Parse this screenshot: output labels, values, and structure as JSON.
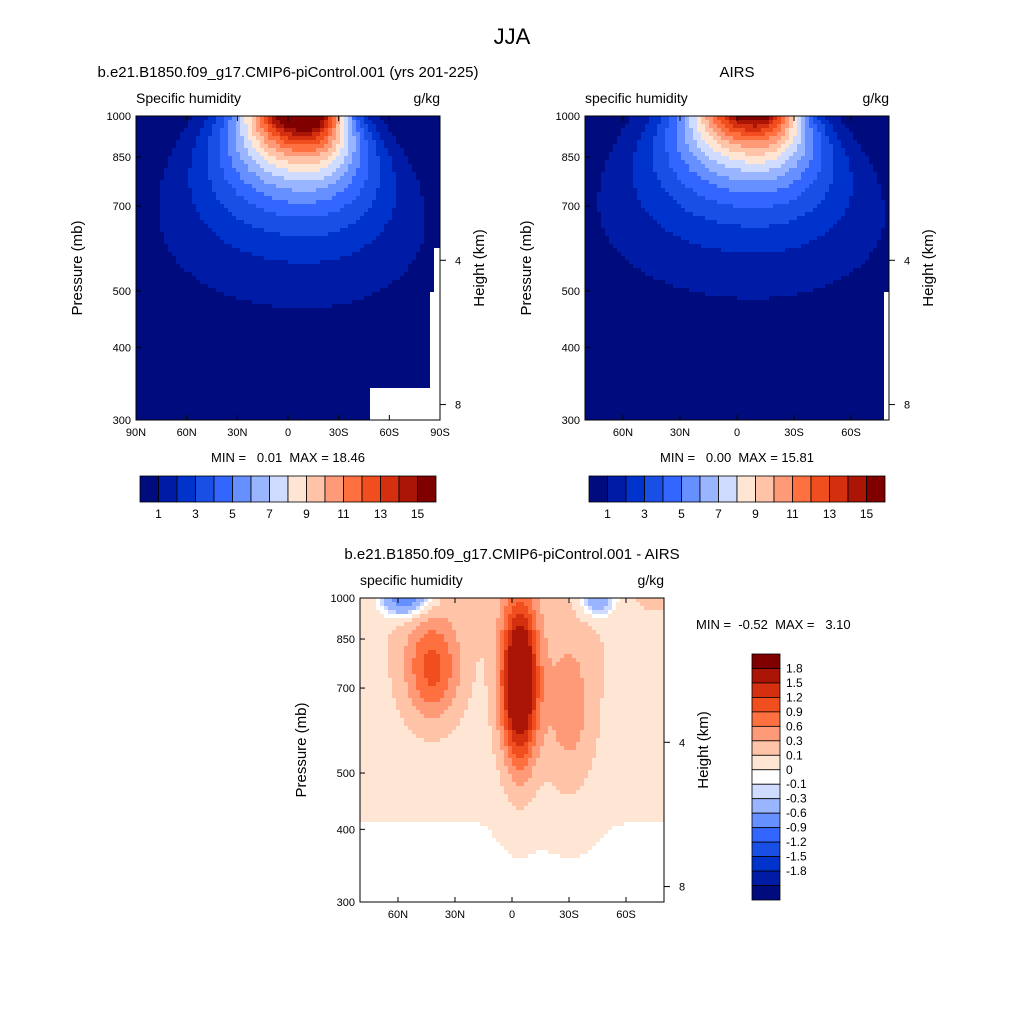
{
  "figure": {
    "title": "JJA"
  },
  "chart_data": [
    {
      "type": "heatmap",
      "title": "b.e21.B1850.f09_g17.CMIP6-piControl.001 (yrs 201-225)",
      "left_label": "Specific humidity",
      "right_label": "g/kg",
      "ylabel": "Pressure (mb)",
      "y2label": "Height (km)",
      "x_ticks": [
        "90N",
        "60N",
        "30N",
        "0",
        "30S",
        "60S",
        "90S"
      ],
      "y_ticks": [
        "300",
        "400",
        "500",
        "700",
        "850",
        "1000"
      ],
      "y2_ticks": [
        "8",
        "4"
      ],
      "stats": "MIN =   0.01  MAX = 18.46",
      "ylim": [
        1000,
        300
      ],
      "xlim": [
        90,
        -90
      ],
      "colorbar": {
        "levels": [
          1,
          2,
          3,
          4,
          5,
          6,
          7,
          8,
          9,
          10,
          11,
          12,
          13,
          14,
          15
        ],
        "labels": [
          "1",
          "3",
          "5",
          "7",
          "9",
          "11",
          "13",
          "15"
        ]
      },
      "max_value": 18.46,
      "core_latitude": -10
    },
    {
      "type": "heatmap",
      "title": "AIRS",
      "left_label": "specific humidity",
      "right_label": "g/kg",
      "ylabel": "Pressure (mb)",
      "y2label": "Height (km)",
      "x_ticks": [
        "60N",
        "30N",
        "0",
        "30S",
        "60S"
      ],
      "y_ticks": [
        "300",
        "400",
        "500",
        "700",
        "850",
        "1000"
      ],
      "y2_ticks": [
        "8",
        "4"
      ],
      "stats": "MIN =   0.00  MAX = 15.81",
      "ylim": [
        1000,
        300
      ],
      "colorbar": {
        "levels": [
          1,
          2,
          3,
          4,
          5,
          6,
          7,
          8,
          9,
          10,
          11,
          12,
          13,
          14,
          15
        ],
        "labels": [
          "1",
          "3",
          "5",
          "7",
          "9",
          "11",
          "13",
          "15"
        ]
      },
      "max_value": 15.81,
      "core_latitude": -10
    },
    {
      "type": "heatmap",
      "title": "b.e21.B1850.f09_g17.CMIP6-piControl.001 - AIRS",
      "left_label": "specific humidity",
      "right_label": "g/kg",
      "ylabel": "Pressure (mb)",
      "y2label": "Height (km)",
      "x_ticks": [
        "60N",
        "30N",
        "0",
        "30S",
        "60S"
      ],
      "y_ticks": [
        "300",
        "400",
        "500",
        "700",
        "850",
        "1000"
      ],
      "y2_ticks": [
        "8",
        "4"
      ],
      "stats": "MIN =  -0.52  MAX =   3.10",
      "ylim": [
        1000,
        300
      ],
      "colorbar": {
        "levels": [
          -1.8,
          -1.5,
          -1.2,
          -0.9,
          -0.6,
          -0.3,
          -0.1,
          0,
          0.1,
          0.3,
          0.6,
          0.9,
          1.2,
          1.5,
          1.8
        ],
        "labels": [
          "1.8",
          "1.5",
          "1.2",
          "0.9",
          "0.6",
          "0.3",
          "0.1",
          "0",
          "-0.1",
          "-0.3",
          "-0.6",
          "-0.9",
          "-1.2",
          "-1.5",
          "-1.8"
        ]
      },
      "max_value": 3.1,
      "min_value": -0.52
    }
  ],
  "colors": {
    "abs_palette": [
      "#000c7d",
      "#001ba6",
      "#0033cc",
      "#1a4fe6",
      "#3366ff",
      "#6690ff",
      "#99b5ff",
      "#cfdcff",
      "#ffe5d4",
      "#ffc4a8",
      "#ff9a78",
      "#ff7040",
      "#f04e1e",
      "#d43010",
      "#aa1505",
      "#800000"
    ],
    "diff_palette": [
      "#000c7d",
      "#001ba6",
      "#0033cc",
      "#1a4fe6",
      "#3366ff",
      "#6690ff",
      "#99b5ff",
      "#cfdcff",
      "#ffffff",
      "#ffe5d4",
      "#ffc4a8",
      "#ff9a78",
      "#ff7040",
      "#f04e1e",
      "#d43010",
      "#aa1505",
      "#800000"
    ]
  }
}
